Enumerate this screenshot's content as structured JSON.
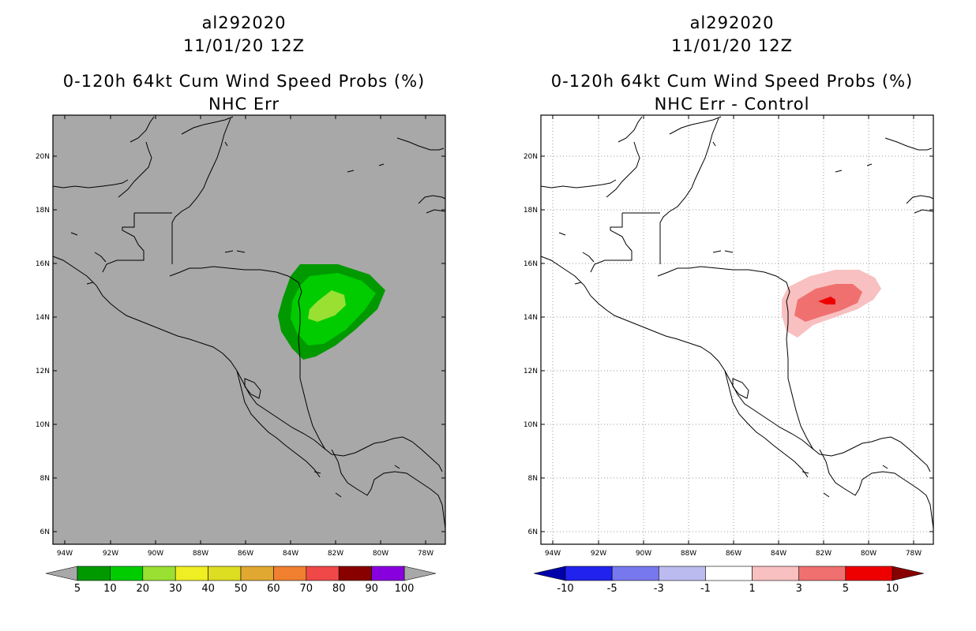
{
  "left": {
    "title_line1": "al292020",
    "title_line2": "11/01/20 12Z",
    "title_line3": "0-120h 64kt Cum Wind Speed Probs (%)",
    "title_line4": "NHC Err",
    "background_color": "#a8a8a8",
    "colorbar": {
      "colors": [
        "#009900",
        "#00cc00",
        "#99e033",
        "#eeee22",
        "#dddd22",
        "#e0a830",
        "#f08030",
        "#f04848",
        "#880000",
        "#8800dd"
      ],
      "labels": [
        "5",
        "10",
        "20",
        "30",
        "40",
        "50",
        "60",
        "70",
        "80",
        "90",
        "100"
      ]
    },
    "contours": [
      {
        "level": "5",
        "color": "#009900"
      },
      {
        "level": "10",
        "color": "#00cc00"
      },
      {
        "level": "20",
        "color": "#99e033"
      }
    ]
  },
  "right": {
    "title_line1": "al292020",
    "title_line2": "11/01/20 12Z",
    "title_line3": "0-120h 64kt Cum Wind Speed Probs (%)",
    "title_line4": "NHC Err - Control",
    "background_color": "#ffffff",
    "colorbar": {
      "colors": [
        "#0000aa",
        "#2222ee",
        "#7777ee",
        "#bbbbf0",
        "#ffffff",
        "#f8c0c0",
        "#f07070",
        "#ee0000",
        "#880000"
      ],
      "labels": [
        "-10",
        "-5",
        "-3",
        "-1",
        "1",
        "3",
        "5",
        "10"
      ]
    },
    "contours": [
      {
        "level": "1",
        "color": "#f8c0c0"
      },
      {
        "level": "3",
        "color": "#f07070"
      },
      {
        "level": "5",
        "color": "#ee0000"
      }
    ]
  },
  "axes": {
    "lat_labels": [
      "20N",
      "18N",
      "16N",
      "14N",
      "12N",
      "10N",
      "8N",
      "6N"
    ],
    "lon_labels": [
      "94W",
      "92W",
      "90W",
      "88W",
      "86W",
      "84W",
      "82W",
      "80W",
      "78W"
    ]
  }
}
